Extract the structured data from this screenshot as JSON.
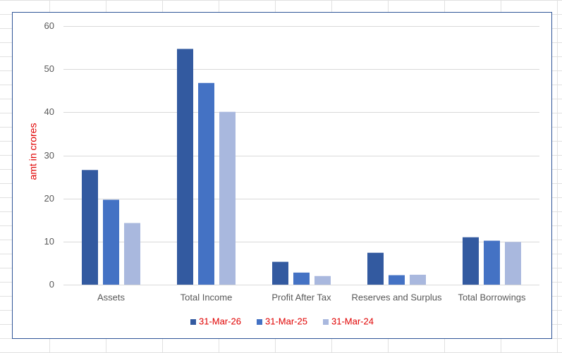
{
  "chart_data": {
    "type": "bar",
    "y_label": "amt in crores",
    "categories": [
      "Assets",
      "Total Income",
      "Profit After Tax",
      "Reserves and Surplus",
      "Total Borrowings"
    ],
    "series": [
      {
        "name": "31-Mar-26",
        "color": "#335aa0",
        "values": [
          26.6,
          54.7,
          5.3,
          7.4,
          11.0
        ]
      },
      {
        "name": "31-Mar-25",
        "color": "#4472c4",
        "values": [
          19.7,
          46.8,
          2.8,
          2.2,
          10.2
        ]
      },
      {
        "name": "31-Mar-24",
        "color": "#a9b8de",
        "values": [
          14.3,
          40.1,
          2.0,
          2.3,
          9.9
        ]
      }
    ],
    "ylim": [
      0,
      60
    ],
    "yticks": [
      0,
      10,
      20,
      30,
      40,
      50,
      60
    ],
    "grid": true,
    "legend": "bottom"
  }
}
